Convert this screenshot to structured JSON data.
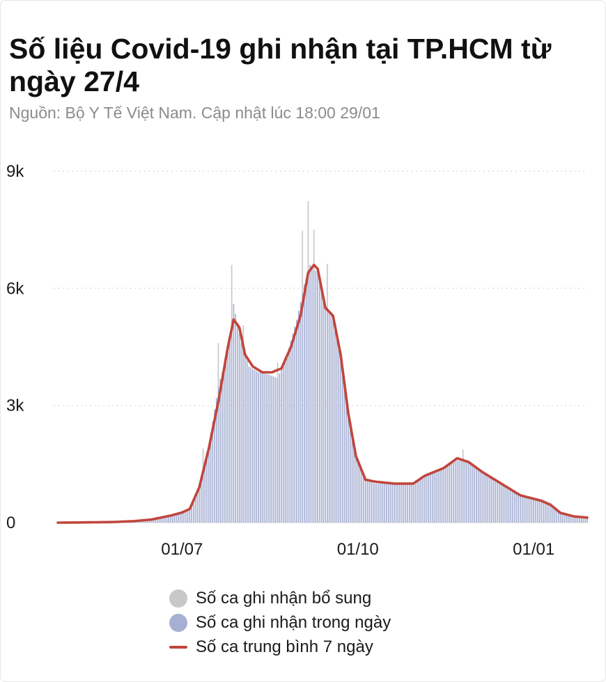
{
  "header": {
    "title": "Số liệu Covid-19 ghi nhận tại TP.HCM từ ngày 27/4",
    "subtitle": "Nguồn: Bộ Y Tế Việt Nam. Cập nhật lúc 18:00 29/01"
  },
  "colors": {
    "daily_bar": "#a7b0d3",
    "supplementary_bar": "#c8c8c8",
    "moving_average_line": "#c0463c",
    "grid": "#d0d0d0"
  },
  "legend": {
    "items": [
      {
        "label": "Số ca ghi nhận bổ sung",
        "marker": "circle",
        "color": "#c8c8c8"
      },
      {
        "label": "Số ca ghi nhận trong ngày",
        "marker": "circle",
        "color": "#a7b0d3"
      },
      {
        "label": "Số ca trung bình 7 ngày",
        "marker": "line",
        "color": "#c0463c"
      }
    ]
  },
  "chart_data": {
    "type": "bar",
    "title": "Số liệu Covid-19 ghi nhận tại TP.HCM từ ngày 27/4",
    "xlabel": "",
    "ylabel": "",
    "x_range": [
      "2021-04-27",
      "2022-01-29"
    ],
    "ylim": [
      0,
      9000
    ],
    "y_ticks": [
      {
        "value": 0,
        "label": "0"
      },
      {
        "value": 3000,
        "label": "3k"
      },
      {
        "value": 6000,
        "label": "6k"
      },
      {
        "value": 9000,
        "label": "9k"
      }
    ],
    "x_ticks": [
      {
        "date": "2021-07-01",
        "label": "01/07"
      },
      {
        "date": "2021-10-01",
        "label": "01/10"
      },
      {
        "date": "2022-01-01",
        "label": "01/01"
      }
    ],
    "grid": true,
    "grid_style": "dotted horizontal",
    "legend_position": "bottom",
    "series": [
      {
        "name": "Số ca ghi nhận trong ngày",
        "type": "bar",
        "points": [
          [
            "2021-04-27",
            0
          ],
          [
            "2021-05-10",
            5
          ],
          [
            "2021-05-25",
            20
          ],
          [
            "2021-06-05",
            40
          ],
          [
            "2021-06-15",
            90
          ],
          [
            "2021-06-25",
            200
          ],
          [
            "2021-07-01",
            280
          ],
          [
            "2021-07-05",
            380
          ],
          [
            "2021-07-10",
            1000
          ],
          [
            "2021-07-15",
            2000
          ],
          [
            "2021-07-20",
            3500
          ],
          [
            "2021-07-25",
            4400
          ],
          [
            "2021-07-28",
            5600
          ],
          [
            "2021-08-01",
            4600
          ],
          [
            "2021-08-05",
            4000
          ],
          [
            "2021-08-10",
            3850
          ],
          [
            "2021-08-15",
            3800
          ],
          [
            "2021-08-20",
            3700
          ],
          [
            "2021-08-25",
            4300
          ],
          [
            "2021-08-30",
            5200
          ],
          [
            "2021-09-03",
            6100
          ],
          [
            "2021-09-06",
            6600
          ],
          [
            "2021-09-10",
            6400
          ],
          [
            "2021-09-14",
            5600
          ],
          [
            "2021-09-18",
            5300
          ],
          [
            "2021-09-22",
            4300
          ],
          [
            "2021-09-26",
            2900
          ],
          [
            "2021-09-30",
            1700
          ],
          [
            "2021-10-05",
            1100
          ],
          [
            "2021-10-10",
            1000
          ],
          [
            "2021-10-20",
            1000
          ],
          [
            "2021-10-30",
            1000
          ],
          [
            "2021-11-05",
            1200
          ],
          [
            "2021-11-15",
            1400
          ],
          [
            "2021-11-22",
            1600
          ],
          [
            "2021-11-28",
            1550
          ],
          [
            "2021-12-05",
            1300
          ],
          [
            "2021-12-15",
            1000
          ],
          [
            "2021-12-25",
            700
          ],
          [
            "2022-01-05",
            600
          ],
          [
            "2022-01-10",
            500
          ],
          [
            "2022-01-15",
            250
          ],
          [
            "2022-01-22",
            150
          ],
          [
            "2022-01-29",
            100
          ]
        ]
      },
      {
        "name": "Số ca ghi nhận bổ sung",
        "type": "bar",
        "points": [
          [
            "2021-07-12",
            500
          ],
          [
            "2021-07-20",
            1100
          ],
          [
            "2021-07-27",
            1400
          ],
          [
            "2021-08-02",
            600
          ],
          [
            "2021-08-20",
            400
          ],
          [
            "2021-09-02",
            1600
          ],
          [
            "2021-09-05",
            1800
          ],
          [
            "2021-09-08",
            1000
          ],
          [
            "2021-09-15",
            1100
          ],
          [
            "2021-11-25",
            300
          ]
        ]
      },
      {
        "name": "Số ca trung bình 7 ngày",
        "type": "line",
        "points": [
          [
            "2021-04-27",
            0
          ],
          [
            "2021-05-10",
            5
          ],
          [
            "2021-05-25",
            15
          ],
          [
            "2021-06-05",
            35
          ],
          [
            "2021-06-15",
            80
          ],
          [
            "2021-06-25",
            180
          ],
          [
            "2021-07-01",
            260
          ],
          [
            "2021-07-05",
            350
          ],
          [
            "2021-07-10",
            900
          ],
          [
            "2021-07-15",
            1900
          ],
          [
            "2021-07-20",
            3100
          ],
          [
            "2021-07-25",
            4500
          ],
          [
            "2021-07-28",
            5200
          ],
          [
            "2021-07-31",
            5000
          ],
          [
            "2021-08-03",
            4300
          ],
          [
            "2021-08-07",
            4000
          ],
          [
            "2021-08-12",
            3850
          ],
          [
            "2021-08-17",
            3850
          ],
          [
            "2021-08-22",
            3950
          ],
          [
            "2021-08-27",
            4500
          ],
          [
            "2021-09-01",
            5300
          ],
          [
            "2021-09-05",
            6400
          ],
          [
            "2021-09-08",
            6600
          ],
          [
            "2021-09-10",
            6500
          ],
          [
            "2021-09-14",
            5500
          ],
          [
            "2021-09-18",
            5300
          ],
          [
            "2021-09-22",
            4300
          ],
          [
            "2021-09-26",
            2800
          ],
          [
            "2021-09-30",
            1700
          ],
          [
            "2021-10-05",
            1100
          ],
          [
            "2021-10-10",
            1050
          ],
          [
            "2021-10-20",
            1000
          ],
          [
            "2021-10-30",
            1000
          ],
          [
            "2021-11-05",
            1200
          ],
          [
            "2021-11-15",
            1400
          ],
          [
            "2021-11-22",
            1650
          ],
          [
            "2021-11-28",
            1550
          ],
          [
            "2021-12-05",
            1300
          ],
          [
            "2021-12-15",
            1000
          ],
          [
            "2021-12-25",
            700
          ],
          [
            "2022-01-05",
            560
          ],
          [
            "2022-01-10",
            450
          ],
          [
            "2022-01-15",
            250
          ],
          [
            "2022-01-22",
            160
          ],
          [
            "2022-01-29",
            130
          ]
        ]
      }
    ]
  }
}
